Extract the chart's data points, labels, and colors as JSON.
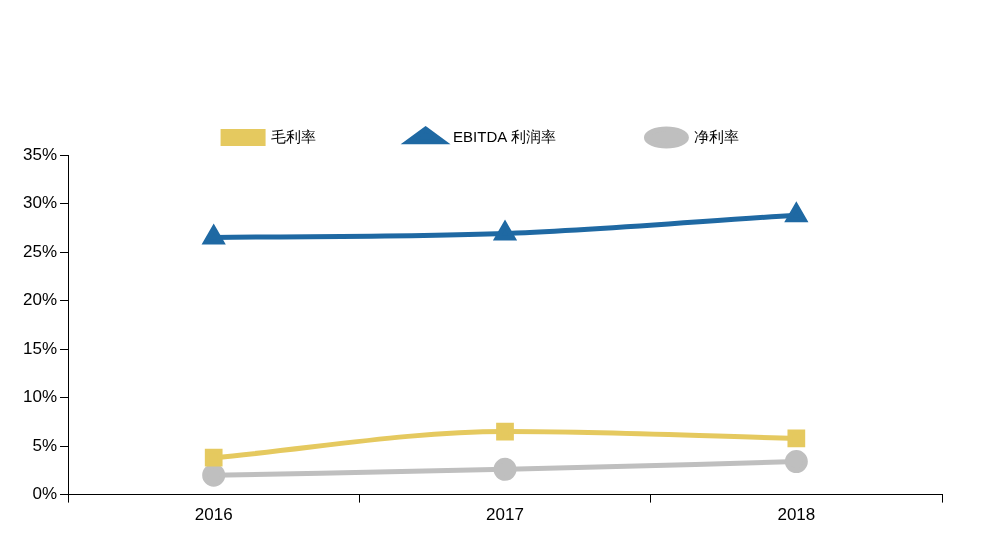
{
  "chart_data": {
    "type": "line",
    "categories": [
      "2016",
      "2017",
      "2018"
    ],
    "series": [
      {
        "name": "毛利率",
        "color": "#e5c95f",
        "marker": "square",
        "values": [
          3.8,
          6.5,
          5.8
        ]
      },
      {
        "name": "EBITDA 利润率",
        "color": "#1f69a3",
        "marker": "triangle",
        "values": [
          26.5,
          26.9,
          28.8
        ]
      },
      {
        "name": "净利率",
        "color": "#bfbfbf",
        "marker": "circle",
        "values": [
          2.0,
          2.6,
          3.4
        ]
      }
    ],
    "ylim": [
      0,
      35
    ],
    "yticks": [
      {
        "value": 0,
        "label": "0%"
      },
      {
        "value": 5,
        "label": "5%"
      },
      {
        "value": 10,
        "label": "10%"
      },
      {
        "value": 15,
        "label": "15%"
      },
      {
        "value": 20,
        "label": "20%"
      },
      {
        "value": 25,
        "label": "25%"
      },
      {
        "value": 30,
        "label": "30%"
      },
      {
        "value": 35,
        "label": "35%"
      }
    ],
    "grid": false,
    "legend": "top",
    "line_style": "solid"
  }
}
